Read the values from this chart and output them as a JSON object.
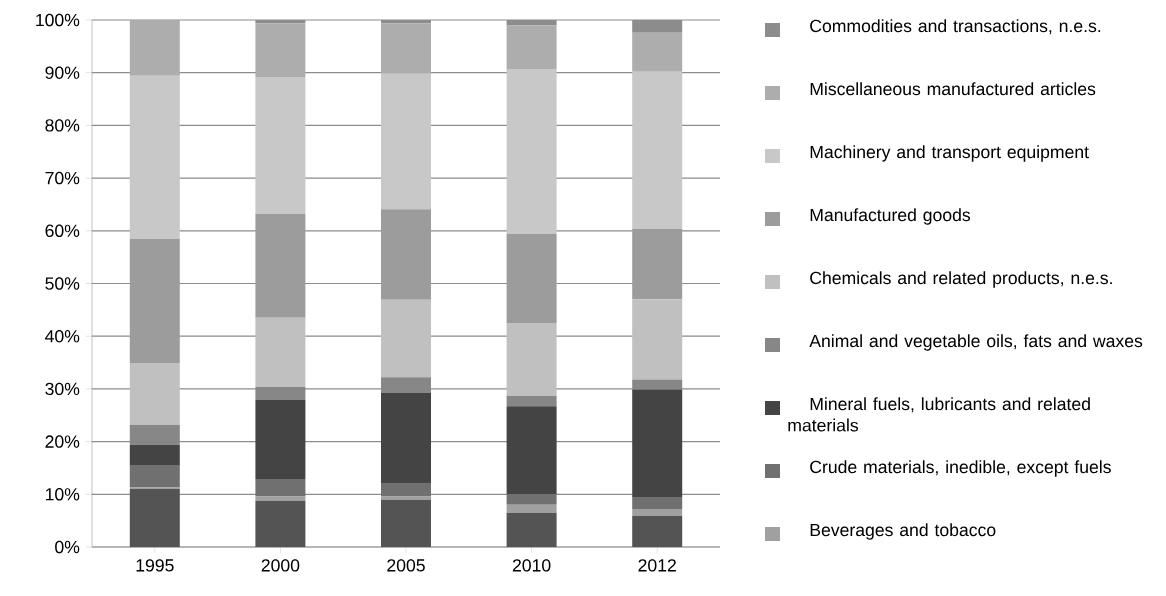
{
  "chart_data": {
    "type": "bar",
    "stacked": true,
    "categories": [
      "1995",
      "2000",
      "2005",
      "2010",
      "2012"
    ],
    "series": [
      {
        "color": "#545454",
        "values": [
          11.0,
          8.8,
          8.9,
          6.5,
          5.9
        ]
      },
      {
        "name": "Beverages and tobacco",
        "color": "#a0a0a0",
        "values": [
          0.3,
          0.8,
          0.7,
          1.5,
          1.3
        ]
      },
      {
        "name": "Crude materials, inedible, except fuels",
        "color": "#707070",
        "values": [
          4.1,
          3.3,
          2.4,
          2.0,
          2.3
        ]
      },
      {
        "name": "Mineral fuels, lubricants and related materials",
        "color": "#444444",
        "values": [
          4.0,
          15.0,
          17.2,
          16.7,
          20.4
        ]
      },
      {
        "name": "Animal and vegetable oils, fats and waxes",
        "color": "#878787",
        "values": [
          3.8,
          2.5,
          3.0,
          2.0,
          1.9
        ]
      },
      {
        "name": "Chemicals and related products, n.e.s.",
        "color": "#c0c0c0",
        "values": [
          11.7,
          13.1,
          14.7,
          13.8,
          15.2
        ]
      },
      {
        "name": "Manufactured goods",
        "color": "#9c9c9c",
        "values": [
          23.6,
          19.7,
          17.2,
          16.9,
          13.4
        ]
      },
      {
        "name": "Machinery and transport equipment",
        "color": "#c8c8c8",
        "values": [
          30.9,
          26.0,
          25.7,
          31.3,
          29.8
        ]
      },
      {
        "name": "Miscellaneous manufactured articles",
        "color": "#adadad",
        "values": [
          10.6,
          10.2,
          9.6,
          8.3,
          7.4
        ]
      },
      {
        "name": "Commodities and transactions, n.e.s.",
        "color": "#8c8c8c",
        "values": [
          0.0,
          0.6,
          0.6,
          1.0,
          2.4
        ]
      }
    ],
    "ylim": [
      0,
      100
    ],
    "yticks": [
      {
        "value": 0,
        "label": "0%"
      },
      {
        "value": 10,
        "label": "10%"
      },
      {
        "value": 20,
        "label": "20%"
      },
      {
        "value": 30,
        "label": "30%"
      },
      {
        "value": 40,
        "label": "40%"
      },
      {
        "value": 50,
        "label": "50%"
      },
      {
        "value": 60,
        "label": "60%"
      },
      {
        "value": 70,
        "label": "70%"
      },
      {
        "value": 80,
        "label": "80%"
      },
      {
        "value": 90,
        "label": "90%"
      },
      {
        "value": 100,
        "label": "100%"
      }
    ],
    "grid": "y",
    "legend": "right"
  }
}
